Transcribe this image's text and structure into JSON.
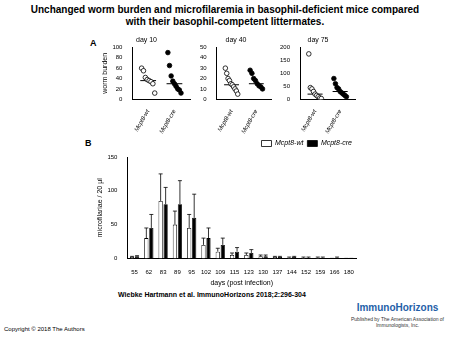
{
  "title": "Unchanged worm burden and microfilaremia in basophil-deficient mice compared with their basophil-competent littermates.",
  "citation": "Wiebke Hartmann et al. ImmunoHorizons 2018;2:296-304",
  "copyright": "Copyright © 2018 The Authors",
  "logo": {
    "name": "ImmunoHorizons",
    "publisher": "Published by The American Association of Immunologists, Inc."
  },
  "chart_data": [
    {
      "type": "strip",
      "panel": "A",
      "title": "day 10",
      "y_label": "worm burden",
      "ylim": [
        0,
        100
      ],
      "yticks": [
        0,
        20,
        40,
        60,
        80,
        100
      ],
      "grid": false,
      "series": [
        {
          "name": "Mcpt8-wt",
          "color": "#000000",
          "marker": "circle-open",
          "values": [
            60,
            55,
            42,
            38,
            36,
            34,
            30,
            12
          ],
          "median": 36
        },
        {
          "name": "Mcpt8-cre",
          "color": "#000000",
          "marker": "circle",
          "values": [
            90,
            65,
            45,
            35,
            30,
            25,
            20,
            18,
            12
          ],
          "median": 30
        }
      ]
    },
    {
      "type": "strip",
      "title": "day 40",
      "ylim": [
        0,
        50
      ],
      "yticks": [
        0,
        10,
        20,
        30,
        40,
        50
      ],
      "grid": false,
      "series": [
        {
          "name": "Mcpt8-wt",
          "color": "#000000",
          "marker": "circle-open",
          "values": [
            30,
            25,
            20,
            18,
            15,
            14,
            12,
            10,
            8,
            5
          ],
          "median": 14
        },
        {
          "name": "Mcpt8-cre",
          "color": "#000000",
          "marker": "circle",
          "values": [
            28,
            25,
            20,
            18,
            15,
            13,
            12,
            10
          ],
          "median": 15
        }
      ]
    },
    {
      "type": "strip",
      "title": "day 75",
      "ylim": [
        0,
        200
      ],
      "yticks": [
        0,
        50,
        100,
        150,
        200
      ],
      "grid": false,
      "series": [
        {
          "name": "Mcpt8-wt",
          "color": "#000000",
          "marker": "circle-open",
          "values": [
            175,
            45,
            40,
            30,
            20,
            15,
            10,
            5,
            3
          ],
          "median": 20
        },
        {
          "name": "Mcpt8-cre",
          "color": "#000000",
          "marker": "circle",
          "values": [
            80,
            60,
            45,
            40,
            30,
            25,
            20,
            15,
            10
          ],
          "median": 30
        }
      ]
    },
    {
      "type": "bar",
      "panel": "B",
      "x_label": "days (post infection)",
      "y_label": "microfilariae / 20 µl",
      "categories": [
        "55",
        "62",
        "83",
        "89",
        "95",
        "102",
        "109",
        "115",
        "123",
        "130",
        "137",
        "144",
        "152",
        "159",
        "166",
        "180"
      ],
      "ylim": [
        0,
        150
      ],
      "yticks": [
        0,
        50,
        100,
        150
      ],
      "grid": false,
      "legend": "upper right",
      "series": [
        {
          "name": "Mcpt8-wt",
          "color": "#ffffff",
          "values": [
            2,
            30,
            85,
            50,
            45,
            20,
            10,
            5,
            5,
            3,
            2,
            1,
            1,
            1,
            0,
            0
          ],
          "errors": [
            1,
            15,
            40,
            20,
            20,
            10,
            5,
            3,
            3,
            2,
            1,
            1,
            1,
            1,
            0,
            0
          ]
        },
        {
          "name": "Mcpt8-cre",
          "color": "#000000",
          "values": [
            3,
            45,
            80,
            80,
            60,
            30,
            20,
            10,
            8,
            3,
            2,
            2,
            1,
            1,
            1,
            0
          ],
          "errors": [
            1,
            20,
            25,
            35,
            35,
            15,
            10,
            6,
            5,
            2,
            1,
            1,
            1,
            1,
            1,
            0
          ]
        }
      ]
    }
  ]
}
